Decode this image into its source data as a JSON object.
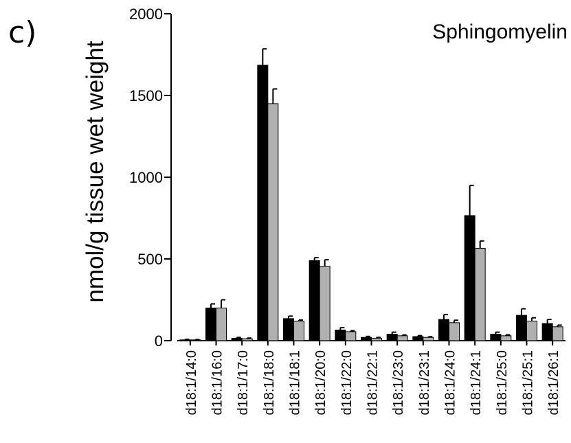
{
  "panel_label": "c)",
  "chart_data": {
    "type": "bar",
    "title": "Sphingomyelin",
    "ylabel": "nmol/g tissue wet weight",
    "xlabel": "",
    "ylim": [
      0,
      2000
    ],
    "yticks": [
      0,
      500,
      1000,
      1500,
      2000
    ],
    "ytick_labels": [
      "0",
      "500",
      "1000",
      "1500",
      "2000"
    ],
    "categories": [
      "d18:1/14:0",
      "d18:1/16:0",
      "d18:1/17:0",
      "d18:1/18:0",
      "d18:1/18:1",
      "d18:1/20:0",
      "d18:1/22:0",
      "d18:1/22:1",
      "d18:1/23:0",
      "d18:1/23:1",
      "d18:1/24:0",
      "d18:1/24:1",
      "d18:1/25:0",
      "d18:1/25:1",
      "d18:1/26:1"
    ],
    "series": [
      {
        "color": "#000000",
        "values": [
          5,
          200,
          15,
          1685,
          135,
          490,
          65,
          20,
          40,
          25,
          130,
          765,
          40,
          155,
          105
        ],
        "errors": [
          3,
          25,
          5,
          100,
          15,
          18,
          15,
          6,
          12,
          6,
          30,
          185,
          12,
          40,
          25
        ]
      },
      {
        "color": "#b0b0b0",
        "values": [
          5,
          200,
          12,
          1450,
          120,
          455,
          55,
          15,
          30,
          20,
          110,
          565,
          30,
          120,
          85
        ],
        "errors": [
          2,
          50,
          4,
          90,
          6,
          40,
          6,
          5,
          5,
          4,
          15,
          45,
          6,
          20,
          10
        ]
      }
    ],
    "grid": false,
    "legend": "none",
    "error_bars": "upper only"
  }
}
